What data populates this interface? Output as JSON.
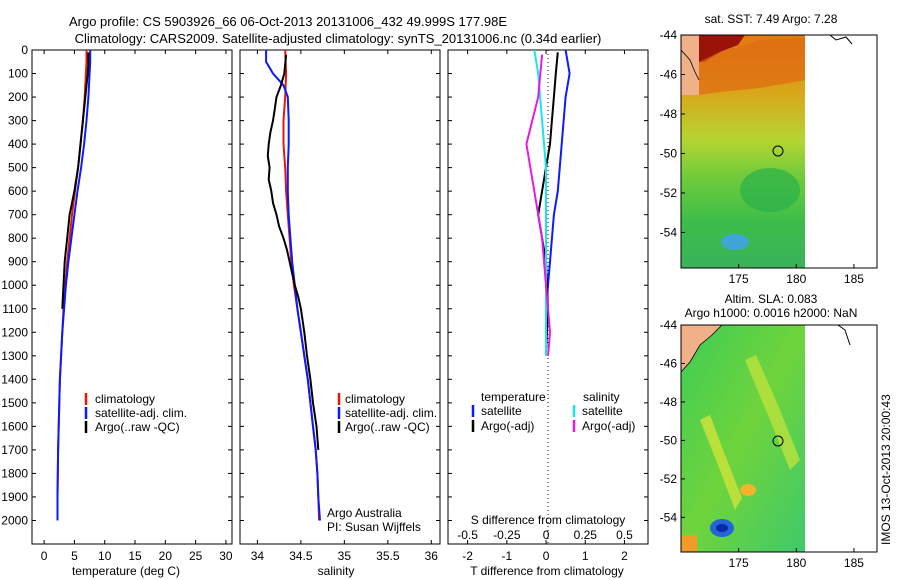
{
  "title_line1": "Argo profile: CS 5903926_66 06-Oct-2013 20131006_432 49.999S 177.98E",
  "title_line2": "Climatology: CARS2009. Satellite-adjusted climatology: synTS_20131006.nc (0.34d earlier)",
  "side_label": "IMOS 13-Oct-2013 20:00:43",
  "colors": {
    "climatology": "#e8170c",
    "satellite": "#0b1bff",
    "argo": "#000000",
    "salinity_satellite": "#19e6e6",
    "salinity_argo": "#e61ae6"
  },
  "chart_data": [
    {
      "type": "line",
      "panel": "temperature",
      "xlabel": "temperature (deg C)",
      "ylabel": "",
      "xlim": [
        -2,
        31
      ],
      "ylim": [
        0,
        2100
      ],
      "xticks": [
        0,
        5,
        10,
        15,
        20,
        25,
        30
      ],
      "yticks": [
        0,
        100,
        200,
        300,
        400,
        500,
        600,
        700,
        800,
        900,
        1000,
        1100,
        1200,
        1300,
        1400,
        1500,
        1600,
        1700,
        1800,
        1900,
        2000
      ],
      "legend": [
        "climatology",
        "satellite-adj. clim.",
        "Argo(..raw -QC)"
      ],
      "series": [
        {
          "name": "climatology",
          "color_key": "climatology",
          "points": [
            [
              7.0,
              0
            ],
            [
              7.0,
              50
            ],
            [
              6.9,
              100
            ],
            [
              6.7,
              200
            ],
            [
              6.4,
              300
            ],
            [
              6.0,
              400
            ],
            [
              5.6,
              500
            ],
            [
              5.1,
              600
            ],
            [
              4.6,
              700
            ],
            [
              4.2,
              800
            ],
            [
              3.8,
              900
            ],
            [
              3.5,
              1000
            ],
            [
              3.2,
              1100
            ],
            [
              3.0,
              1200
            ],
            [
              2.8,
              1300
            ],
            [
              2.6,
              1400
            ],
            [
              2.5,
              1500
            ],
            [
              2.4,
              1600
            ],
            [
              2.3,
              1700
            ],
            [
              2.25,
              1800
            ],
            [
              2.2,
              1900
            ],
            [
              2.2,
              2000
            ]
          ]
        },
        {
          "name": "satellite",
          "color_key": "satellite",
          "points": [
            [
              7.6,
              0
            ],
            [
              7.6,
              50
            ],
            [
              7.5,
              100
            ],
            [
              7.3,
              200
            ],
            [
              7.0,
              300
            ],
            [
              6.6,
              400
            ],
            [
              6.1,
              500
            ],
            [
              5.5,
              600
            ],
            [
              5.0,
              700
            ],
            [
              4.5,
              800
            ],
            [
              4.0,
              900
            ],
            [
              3.6,
              1000
            ],
            [
              3.3,
              1100
            ],
            [
              3.0,
              1200
            ],
            [
              2.8,
              1300
            ],
            [
              2.6,
              1400
            ],
            [
              2.5,
              1500
            ],
            [
              2.4,
              1600
            ],
            [
              2.3,
              1700
            ],
            [
              2.25,
              1800
            ],
            [
              2.2,
              1900
            ],
            [
              2.2,
              2000
            ]
          ]
        },
        {
          "name": "Argo",
          "color_key": "argo",
          "points": [
            [
              7.3,
              10
            ],
            [
              7.3,
              60
            ],
            [
              7.2,
              100
            ],
            [
              7.0,
              150
            ],
            [
              6.8,
              200
            ],
            [
              6.6,
              250
            ],
            [
              6.4,
              300
            ],
            [
              6.2,
              350
            ],
            [
              6.0,
              400
            ],
            [
              5.8,
              450
            ],
            [
              5.6,
              500
            ],
            [
              5.3,
              550
            ],
            [
              5.0,
              600
            ],
            [
              4.6,
              650
            ],
            [
              4.2,
              700
            ],
            [
              4.0,
              750
            ],
            [
              3.8,
              800
            ],
            [
              3.6,
              850
            ],
            [
              3.4,
              900
            ],
            [
              3.3,
              950
            ],
            [
              3.2,
              1000
            ],
            [
              3.1,
              1050
            ],
            [
              3.0,
              1100
            ]
          ]
        }
      ]
    },
    {
      "type": "line",
      "panel": "salinity",
      "xlabel": "salinity",
      "xlim": [
        33.8,
        36.1
      ],
      "ylim": [
        0,
        2100
      ],
      "xticks": [
        34,
        34.5,
        35,
        35.5,
        36
      ],
      "legend": [
        "climatology",
        "satellite-adj. clim.",
        "Argo(..raw -QC)"
      ],
      "annotation": [
        "Argo Australia",
        "PI: Susan Wijffels"
      ],
      "series": [
        {
          "name": "climatology",
          "color_key": "climatology",
          "points": [
            [
              34.32,
              0
            ],
            [
              34.33,
              100
            ],
            [
              34.32,
              200
            ],
            [
              34.3,
              300
            ],
            [
              34.3,
              400
            ],
            [
              34.32,
              500
            ],
            [
              34.33,
              600
            ],
            [
              34.35,
              700
            ],
            [
              34.37,
              800
            ],
            [
              34.39,
              900
            ],
            [
              34.42,
              1000
            ],
            [
              34.46,
              1100
            ],
            [
              34.5,
              1200
            ],
            [
              34.54,
              1300
            ],
            [
              34.58,
              1400
            ],
            [
              34.61,
              1500
            ],
            [
              34.64,
              1600
            ],
            [
              34.67,
              1700
            ],
            [
              34.69,
              1800
            ],
            [
              34.7,
              1900
            ],
            [
              34.71,
              2000
            ]
          ]
        },
        {
          "name": "satellite",
          "color_key": "satellite",
          "points": [
            [
              34.1,
              0
            ],
            [
              34.1,
              50
            ],
            [
              34.18,
              100
            ],
            [
              34.3,
              150
            ],
            [
              34.35,
              200
            ],
            [
              34.36,
              300
            ],
            [
              34.36,
              400
            ],
            [
              34.35,
              500
            ],
            [
              34.35,
              600
            ],
            [
              34.36,
              700
            ],
            [
              34.38,
              800
            ],
            [
              34.4,
              900
            ],
            [
              34.43,
              1000
            ],
            [
              34.46,
              1100
            ],
            [
              34.5,
              1200
            ],
            [
              34.54,
              1300
            ],
            [
              34.58,
              1400
            ],
            [
              34.61,
              1500
            ],
            [
              34.64,
              1600
            ],
            [
              34.67,
              1700
            ],
            [
              34.69,
              1800
            ],
            [
              34.7,
              1900
            ],
            [
              34.72,
              2000
            ]
          ]
        },
        {
          "name": "Argo",
          "color_key": "argo",
          "points": [
            [
              34.33,
              20
            ],
            [
              34.32,
              60
            ],
            [
              34.31,
              100
            ],
            [
              34.27,
              150
            ],
            [
              34.22,
              200
            ],
            [
              34.2,
              250
            ],
            [
              34.18,
              300
            ],
            [
              34.15,
              350
            ],
            [
              34.13,
              400
            ],
            [
              34.12,
              450
            ],
            [
              34.14,
              500
            ],
            [
              34.13,
              550
            ],
            [
              34.16,
              600
            ],
            [
              34.18,
              650
            ],
            [
              34.22,
              700
            ],
            [
              34.25,
              750
            ],
            [
              34.3,
              800
            ],
            [
              34.34,
              850
            ],
            [
              34.37,
              900
            ],
            [
              34.4,
              950
            ],
            [
              34.43,
              1000
            ],
            [
              34.47,
              1050
            ],
            [
              34.5,
              1100
            ],
            [
              34.52,
              1150
            ],
            [
              34.54,
              1200
            ],
            [
              34.57,
              1300
            ],
            [
              34.61,
              1400
            ],
            [
              34.64,
              1500
            ],
            [
              34.68,
              1600
            ],
            [
              34.7,
              1700
            ]
          ]
        }
      ]
    },
    {
      "type": "line",
      "panel": "difference",
      "xlabel": "T difference from climatology",
      "xlabel_top": "S difference from climatology",
      "xlim": [
        -2.5,
        2.6
      ],
      "ylim": [
        0,
        2100
      ],
      "xticks": [
        -2,
        -1,
        0,
        1,
        2
      ],
      "xticks_top": [
        {
          "label": "-0.5",
          "t": -2
        },
        {
          "label": "-0.25",
          "t": -1
        },
        {
          "label": "0",
          "t": 0
        },
        {
          "label": "0.25",
          "t": 1
        },
        {
          "label": "0.5",
          "t": 2
        }
      ],
      "legend_headers": [
        "temperature",
        "salinity"
      ],
      "legend": [
        "satellite",
        "Argo(-adj)",
        "satellite",
        "Argo(-adj)"
      ],
      "series": [
        {
          "name": "T satellite",
          "color_key": "satellite",
          "points": [
            [
              0.5,
              0
            ],
            [
              0.6,
              100
            ],
            [
              0.5,
              200
            ],
            [
              0.4,
              400
            ],
            [
              0.3,
              600
            ],
            [
              0.2,
              700
            ],
            [
              0.1,
              900
            ],
            [
              0.0,
              1100
            ],
            [
              0.0,
              1300
            ]
          ]
        },
        {
          "name": "T Argo",
          "color_key": "argo",
          "points": [
            [
              0.3,
              10
            ],
            [
              0.25,
              100
            ],
            [
              0.2,
              200
            ],
            [
              0.15,
              300
            ],
            [
              0.1,
              400
            ],
            [
              0.0,
              500
            ],
            [
              -0.1,
              600
            ],
            [
              -0.2,
              700
            ],
            [
              0.0,
              900
            ],
            [
              0.05,
              1100
            ],
            [
              0.0,
              1280
            ]
          ]
        },
        {
          "name": "S satellite",
          "color_key": "salinity_satellite",
          "points": [
            [
              -0.3,
              0
            ],
            [
              -0.2,
              100
            ],
            [
              -0.1,
              300
            ],
            [
              0.0,
              500
            ],
            [
              0.0,
              700
            ],
            [
              0.0,
              900
            ],
            [
              0.0,
              1100
            ],
            [
              0.0,
              1300
            ]
          ]
        },
        {
          "name": "S Argo",
          "color_key": "salinity_argo",
          "points": [
            [
              -0.1,
              20
            ],
            [
              -0.2,
              200
            ],
            [
              -0.5,
              400
            ],
            [
              -0.3,
              600
            ],
            [
              -0.1,
              800
            ],
            [
              0.0,
              1000
            ],
            [
              0.1,
              1200
            ],
            [
              0.05,
              1300
            ]
          ]
        }
      ]
    },
    {
      "type": "heatmap",
      "panel": "sst-map",
      "title": "sat. SST: 7.49 Argo: 7.28",
      "xlim": [
        170,
        187
      ],
      "ylim": [
        -55.8,
        -44
      ],
      "xticks": [
        175,
        180,
        185
      ],
      "yticks": [
        -44,
        -46,
        -48,
        -50,
        -52,
        -54
      ],
      "marker": [
        178,
        -50
      ]
    },
    {
      "type": "heatmap",
      "panel": "sla-map",
      "title_line1": "Altim. SLA: 0.083",
      "title_line2": "Argo h1000: 0.0016 h2000: NaN",
      "xlim": [
        170,
        187
      ],
      "ylim": [
        -55.8,
        -44
      ],
      "xticks": [
        175,
        180,
        185
      ],
      "yticks": [
        -44,
        -46,
        -48,
        -50,
        -52,
        -54
      ],
      "marker": [
        178,
        -50
      ]
    }
  ]
}
